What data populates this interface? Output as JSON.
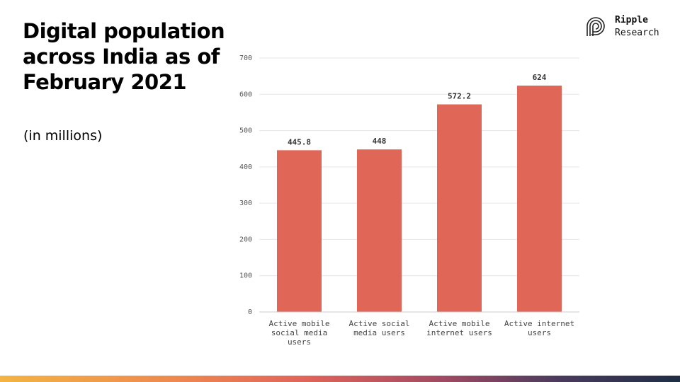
{
  "slide": {
    "title": "Digital population across India as of February 2021",
    "subtitle": "(in millions)"
  },
  "logo": {
    "icon": "ripple-logo-icon",
    "line1": "Ripple",
    "line2": "Research"
  },
  "colors": {
    "bar": "#e06657",
    "grid": "#e6e6e6"
  },
  "chart_data": {
    "type": "bar",
    "categories": [
      [
        "Active mobile",
        "social media",
        "users"
      ],
      [
        "Active social",
        "media users"
      ],
      [
        "Active mobile",
        "internet users"
      ],
      [
        "Active internet",
        "users"
      ]
    ],
    "values": [
      445.8,
      448,
      572.2,
      624
    ],
    "value_labels": [
      "445.8",
      "448",
      "572.2",
      "624"
    ],
    "ylim": [
      0,
      700
    ],
    "yticks": [
      0,
      100,
      200,
      300,
      400,
      500,
      600,
      700
    ],
    "grid": true,
    "title": "",
    "xlabel": "",
    "ylabel": ""
  }
}
